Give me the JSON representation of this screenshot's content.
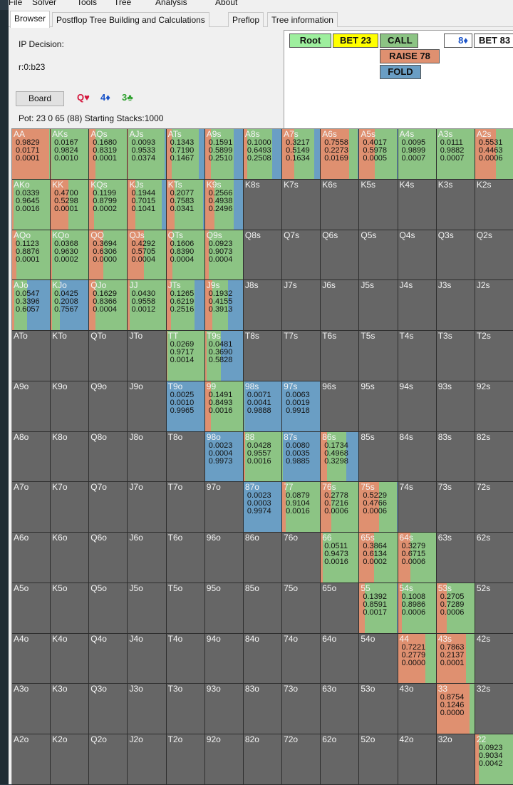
{
  "menu": [
    "File",
    "Solver",
    "Tools",
    "Tree",
    "Analysis",
    "About"
  ],
  "tabs": [
    "Browser",
    "Postflop Tree Building and Calculations",
    "Preflop",
    "Tree information"
  ],
  "active_tab": 0,
  "info": {
    "decision": "IP Decision:",
    "line": "r:0:b23",
    "board_button": "Board",
    "cards": [
      {
        "text": "Q♥",
        "color": "#d4163c"
      },
      {
        "text": "4♦",
        "color": "#1a53c8"
      },
      {
        "text": "3♣",
        "color": "#2ea02e"
      }
    ],
    "pot": "Pot: 23 0 65 (88) Starting Stacks:1000"
  },
  "tree": {
    "root": "Root",
    "bet23": "BET 23",
    "call": "CALL",
    "raise": "RAISE 78",
    "fold": "FOLD",
    "card": "8♦",
    "bet83": "BET 83"
  },
  "colors": {
    "call": "#8cc484",
    "raise": "#df9070",
    "fold": "#6a9ec4",
    "empty": "#666666",
    "root": "#9eef9e",
    "bet": "#ffff00"
  },
  "grid": [
    [
      {
        "l": "AA",
        "v": [
          "0.9829",
          "0.0171",
          "0.0001"
        ]
      },
      {
        "l": "AKs",
        "v": [
          "0.0167",
          "0.9824",
          "0.0010"
        ]
      },
      {
        "l": "AQs",
        "v": [
          "0.1680",
          "0.8319",
          "0.0001"
        ]
      },
      {
        "l": "AJs",
        "v": [
          "0.0093",
          "0.9533",
          "0.0374"
        ]
      },
      {
        "l": "ATs",
        "v": [
          "0.1343",
          "0.7190",
          "0.1467"
        ]
      },
      {
        "l": "A9s",
        "v": [
          "0.1591",
          "0.5899",
          "0.2510"
        ]
      },
      {
        "l": "A8s",
        "v": [
          "0.1000",
          "0.6493",
          "0.2508"
        ]
      },
      {
        "l": "A7s",
        "v": [
          "0.3217",
          "0.5149",
          "0.1634"
        ]
      },
      {
        "l": "A6s",
        "v": [
          "0.7558",
          "0.2273",
          "0.0169"
        ]
      },
      {
        "l": "A5s",
        "v": [
          "0.4017",
          "0.5978",
          "0.0005"
        ]
      },
      {
        "l": "A4s",
        "v": [
          "0.0095",
          "0.9899",
          "0.0007"
        ]
      },
      {
        "l": "A3s",
        "v": [
          "0.0111",
          "0.9882",
          "0.0007"
        ]
      },
      {
        "l": "A2s",
        "v": [
          "0.5531",
          "0.4463",
          "0.0006"
        ]
      }
    ],
    [
      {
        "l": "AKo",
        "v": [
          "0.0339",
          "0.9645",
          "0.0016"
        ]
      },
      {
        "l": "KK",
        "v": [
          "0.4700",
          "0.5298",
          "0.0001"
        ]
      },
      {
        "l": "KQs",
        "v": [
          "0.1199",
          "0.8799",
          "0.0002"
        ]
      },
      {
        "l": "KJs",
        "v": [
          "0.1944",
          "0.7015",
          "0.1041"
        ]
      },
      {
        "l": "KTs",
        "v": [
          "0.2077",
          "0.7583",
          "0.0341"
        ]
      },
      {
        "l": "K9s",
        "v": [
          "0.2566",
          "0.4938",
          "0.2496"
        ]
      },
      {
        "l": "K8s",
        "v": []
      },
      {
        "l": "K7s",
        "v": []
      },
      {
        "l": "K6s",
        "v": []
      },
      {
        "l": "K5s",
        "v": []
      },
      {
        "l": "K4s",
        "v": []
      },
      {
        "l": "K3s",
        "v": []
      },
      {
        "l": "K2s",
        "v": []
      }
    ],
    [
      {
        "l": "AQo",
        "v": [
          "0.1123",
          "0.8876",
          "0.0001"
        ]
      },
      {
        "l": "KQo",
        "v": [
          "0.0368",
          "0.9630",
          "0.0002"
        ]
      },
      {
        "l": "QQ",
        "v": [
          "0.3694",
          "0.6306",
          "0.0000"
        ]
      },
      {
        "l": "QJs",
        "v": [
          "0.4292",
          "0.5705",
          "0.0004"
        ]
      },
      {
        "l": "QTs",
        "v": [
          "0.1606",
          "0.8390",
          "0.0004"
        ]
      },
      {
        "l": "Q9s",
        "v": [
          "0.0923",
          "0.9073",
          "0.0004"
        ]
      },
      {
        "l": "Q8s",
        "v": []
      },
      {
        "l": "Q7s",
        "v": []
      },
      {
        "l": "Q6s",
        "v": []
      },
      {
        "l": "Q5s",
        "v": []
      },
      {
        "l": "Q4s",
        "v": []
      },
      {
        "l": "Q3s",
        "v": []
      },
      {
        "l": "Q2s",
        "v": []
      }
    ],
    [
      {
        "l": "AJo",
        "v": [
          "0.0547",
          "0.3396",
          "0.6057"
        ]
      },
      {
        "l": "KJo",
        "v": [
          "0.0425",
          "0.2008",
          "0.7567"
        ]
      },
      {
        "l": "QJo",
        "v": [
          "0.1629",
          "0.8366",
          "0.0004"
        ]
      },
      {
        "l": "JJ",
        "v": [
          "0.0430",
          "0.9558",
          "0.0012"
        ]
      },
      {
        "l": "JTs",
        "v": [
          "0.1265",
          "0.6219",
          "0.2516"
        ]
      },
      {
        "l": "J9s",
        "v": [
          "0.1932",
          "0.4155",
          "0.3913"
        ]
      },
      {
        "l": "J8s",
        "v": []
      },
      {
        "l": "J7s",
        "v": []
      },
      {
        "l": "J6s",
        "v": []
      },
      {
        "l": "J5s",
        "v": []
      },
      {
        "l": "J4s",
        "v": []
      },
      {
        "l": "J3s",
        "v": []
      },
      {
        "l": "J2s",
        "v": []
      }
    ],
    [
      {
        "l": "ATo",
        "v": []
      },
      {
        "l": "KTo",
        "v": []
      },
      {
        "l": "QTo",
        "v": []
      },
      {
        "l": "JTo",
        "v": []
      },
      {
        "l": "TT",
        "v": [
          "0.0269",
          "0.9717",
          "0.0014"
        ]
      },
      {
        "l": "T9s",
        "v": [
          "0.0481",
          "0.3690",
          "0.5828"
        ]
      },
      {
        "l": "T8s",
        "v": []
      },
      {
        "l": "T7s",
        "v": []
      },
      {
        "l": "T6s",
        "v": []
      },
      {
        "l": "T5s",
        "v": []
      },
      {
        "l": "T4s",
        "v": []
      },
      {
        "l": "T3s",
        "v": []
      },
      {
        "l": "T2s",
        "v": []
      }
    ],
    [
      {
        "l": "A9o",
        "v": []
      },
      {
        "l": "K9o",
        "v": []
      },
      {
        "l": "Q9o",
        "v": []
      },
      {
        "l": "J9o",
        "v": []
      },
      {
        "l": "T9o",
        "v": [
          "0.0025",
          "0.0010",
          "0.9965"
        ]
      },
      {
        "l": "99",
        "v": [
          "0.1491",
          "0.8493",
          "0.0016"
        ]
      },
      {
        "l": "98s",
        "v": [
          "0.0071",
          "0.0041",
          "0.9888"
        ]
      },
      {
        "l": "97s",
        "v": [
          "0.0063",
          "0.0019",
          "0.9918"
        ]
      },
      {
        "l": "96s",
        "v": []
      },
      {
        "l": "95s",
        "v": []
      },
      {
        "l": "94s",
        "v": []
      },
      {
        "l": "93s",
        "v": []
      },
      {
        "l": "92s",
        "v": []
      }
    ],
    [
      {
        "l": "A8o",
        "v": []
      },
      {
        "l": "K8o",
        "v": []
      },
      {
        "l": "Q8o",
        "v": []
      },
      {
        "l": "J8o",
        "v": []
      },
      {
        "l": "T8o",
        "v": []
      },
      {
        "l": "98o",
        "v": [
          "0.0023",
          "0.0004",
          "0.9973"
        ]
      },
      {
        "l": "88",
        "v": [
          "0.0428",
          "0.9557",
          "0.0016"
        ]
      },
      {
        "l": "87s",
        "v": [
          "0.0080",
          "0.0035",
          "0.9885"
        ]
      },
      {
        "l": "86s",
        "v": [
          "0.1734",
          "0.4968",
          "0.3298"
        ]
      },
      {
        "l": "85s",
        "v": []
      },
      {
        "l": "84s",
        "v": []
      },
      {
        "l": "83s",
        "v": []
      },
      {
        "l": "82s",
        "v": []
      }
    ],
    [
      {
        "l": "A7o",
        "v": []
      },
      {
        "l": "K7o",
        "v": []
      },
      {
        "l": "Q7o",
        "v": []
      },
      {
        "l": "J7o",
        "v": []
      },
      {
        "l": "T7o",
        "v": []
      },
      {
        "l": "97o",
        "v": []
      },
      {
        "l": "87o",
        "v": [
          "0.0023",
          "0.0003",
          "0.9974"
        ]
      },
      {
        "l": "77",
        "v": [
          "0.0879",
          "0.9104",
          "0.0016"
        ]
      },
      {
        "l": "76s",
        "v": [
          "0.2778",
          "0.7216",
          "0.0006"
        ]
      },
      {
        "l": "75s",
        "v": [
          "0.5229",
          "0.4766",
          "0.0006"
        ]
      },
      {
        "l": "74s",
        "v": []
      },
      {
        "l": "73s",
        "v": []
      },
      {
        "l": "72s",
        "v": []
      }
    ],
    [
      {
        "l": "A6o",
        "v": []
      },
      {
        "l": "K6o",
        "v": []
      },
      {
        "l": "Q6o",
        "v": []
      },
      {
        "l": "J6o",
        "v": []
      },
      {
        "l": "T6o",
        "v": []
      },
      {
        "l": "96o",
        "v": []
      },
      {
        "l": "86o",
        "v": []
      },
      {
        "l": "76o",
        "v": []
      },
      {
        "l": "66",
        "v": [
          "0.0511",
          "0.9473",
          "0.0016"
        ]
      },
      {
        "l": "65s",
        "v": [
          "0.3864",
          "0.6134",
          "0.0002"
        ]
      },
      {
        "l": "64s",
        "v": [
          "0.3279",
          "0.6715",
          "0.0006"
        ]
      },
      {
        "l": "63s",
        "v": []
      },
      {
        "l": "62s",
        "v": []
      }
    ],
    [
      {
        "l": "A5o",
        "v": []
      },
      {
        "l": "K5o",
        "v": []
      },
      {
        "l": "Q5o",
        "v": []
      },
      {
        "l": "J5o",
        "v": []
      },
      {
        "l": "T5o",
        "v": []
      },
      {
        "l": "95o",
        "v": []
      },
      {
        "l": "85o",
        "v": []
      },
      {
        "l": "75o",
        "v": []
      },
      {
        "l": "65o",
        "v": []
      },
      {
        "l": "55",
        "v": [
          "0.1392",
          "0.8591",
          "0.0017"
        ]
      },
      {
        "l": "54s",
        "v": [
          "0.1008",
          "0.8986",
          "0.0006"
        ]
      },
      {
        "l": "53s",
        "v": [
          "0.2705",
          "0.7289",
          "0.0006"
        ]
      },
      {
        "l": "52s",
        "v": []
      }
    ],
    [
      {
        "l": "A4o",
        "v": []
      },
      {
        "l": "K4o",
        "v": []
      },
      {
        "l": "Q4o",
        "v": []
      },
      {
        "l": "J4o",
        "v": []
      },
      {
        "l": "T4o",
        "v": []
      },
      {
        "l": "94o",
        "v": []
      },
      {
        "l": "84o",
        "v": []
      },
      {
        "l": "74o",
        "v": []
      },
      {
        "l": "64o",
        "v": []
      },
      {
        "l": "54o",
        "v": []
      },
      {
        "l": "44",
        "v": [
          "0.7221",
          "0.2779",
          "0.0000"
        ]
      },
      {
        "l": "43s",
        "v": [
          "0.7863",
          "0.2137",
          "0.0001"
        ]
      },
      {
        "l": "42s",
        "v": []
      }
    ],
    [
      {
        "l": "A3o",
        "v": []
      },
      {
        "l": "K3o",
        "v": []
      },
      {
        "l": "Q3o",
        "v": []
      },
      {
        "l": "J3o",
        "v": []
      },
      {
        "l": "T3o",
        "v": []
      },
      {
        "l": "93o",
        "v": []
      },
      {
        "l": "83o",
        "v": []
      },
      {
        "l": "73o",
        "v": []
      },
      {
        "l": "63o",
        "v": []
      },
      {
        "l": "53o",
        "v": []
      },
      {
        "l": "43o",
        "v": []
      },
      {
        "l": "33",
        "v": [
          "0.8754",
          "0.1246",
          "0.0000"
        ]
      },
      {
        "l": "32s",
        "v": []
      }
    ],
    [
      {
        "l": "A2o",
        "v": []
      },
      {
        "l": "K2o",
        "v": []
      },
      {
        "l": "Q2o",
        "v": []
      },
      {
        "l": "J2o",
        "v": []
      },
      {
        "l": "T2o",
        "v": []
      },
      {
        "l": "92o",
        "v": []
      },
      {
        "l": "82o",
        "v": []
      },
      {
        "l": "72o",
        "v": []
      },
      {
        "l": "62o",
        "v": []
      },
      {
        "l": "52o",
        "v": []
      },
      {
        "l": "42o",
        "v": []
      },
      {
        "l": "32o",
        "v": []
      },
      {
        "l": "22",
        "v": [
          "0.0923",
          "0.9034",
          "0.0042"
        ]
      }
    ]
  ]
}
